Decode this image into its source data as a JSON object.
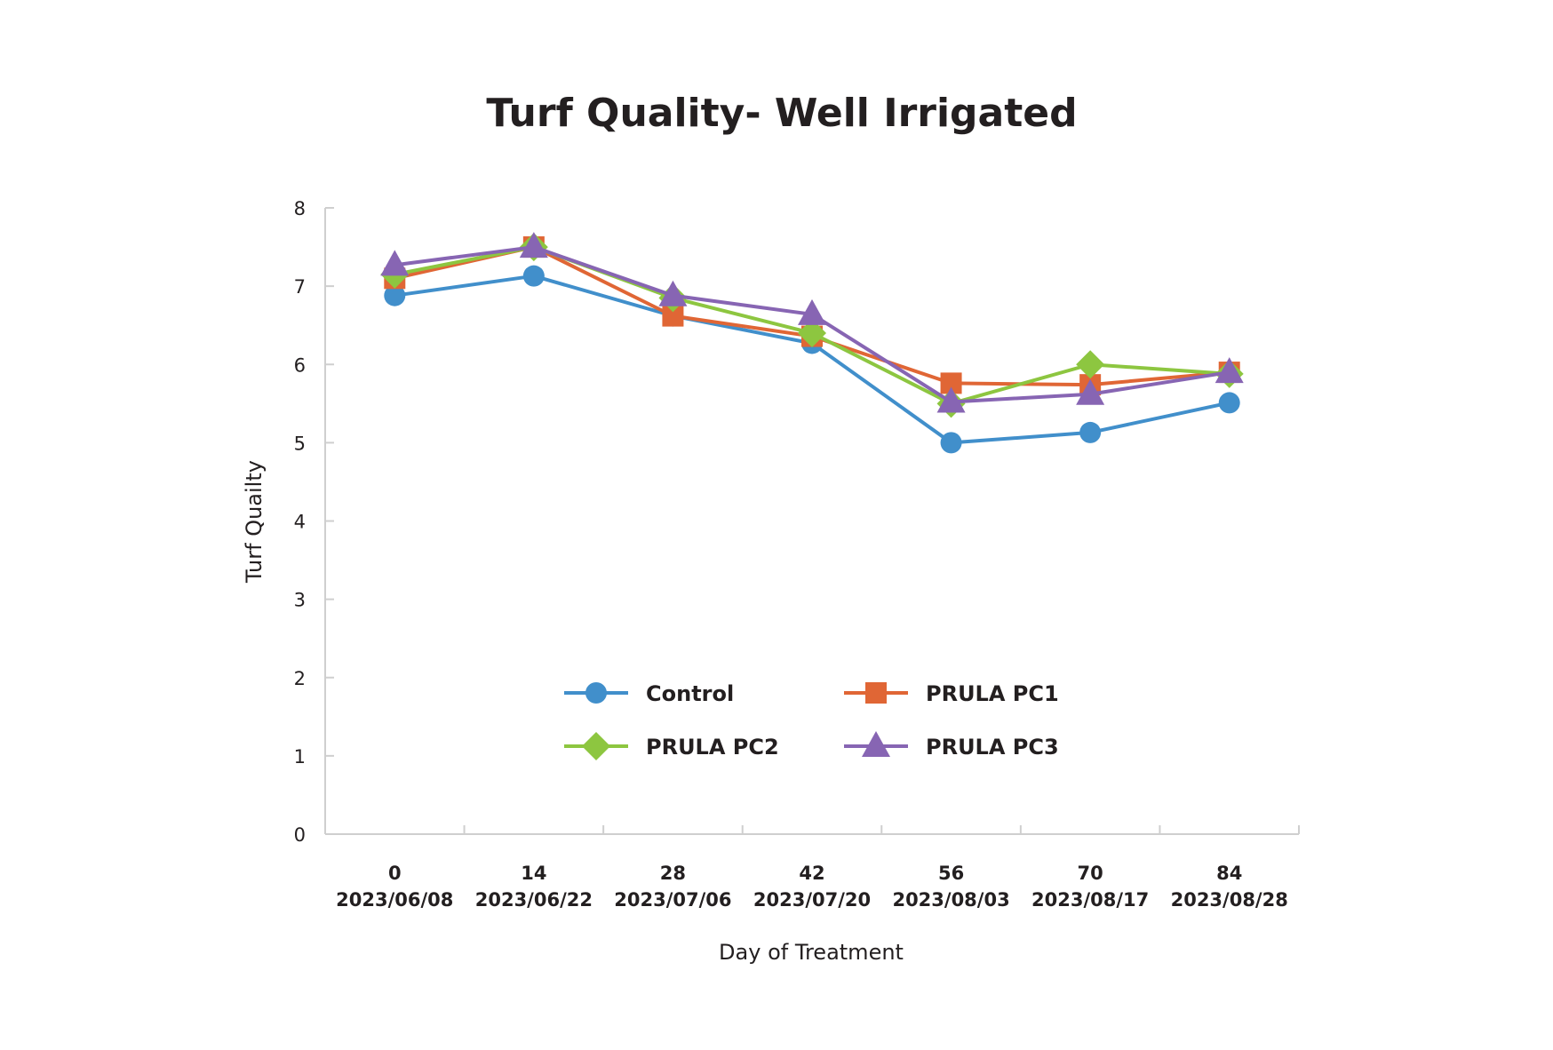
{
  "chart_data": {
    "type": "line",
    "title": "Turf Quality- Well Irrigated",
    "xlabel": "Day of Treatment",
    "ylabel": "Turf Quailty",
    "categories": [
      "0",
      "14",
      "28",
      "42",
      "56",
      "70",
      "84"
    ],
    "category_dates": [
      "2023/06/08",
      "2023/06/22",
      "2023/07/06",
      "2023/07/20",
      "2023/08/03",
      "2023/08/17",
      "2023/08/28"
    ],
    "ylim": [
      0,
      8
    ],
    "yticks": [
      0,
      1,
      2,
      3,
      4,
      5,
      6,
      7,
      8
    ],
    "grid": false,
    "legend_position": "bottom-center-inside",
    "series": [
      {
        "name": "Control",
        "marker": "circle",
        "color": "#418fcb",
        "values": [
          6.88,
          7.13,
          6.62,
          6.27,
          5.0,
          5.13,
          5.51
        ]
      },
      {
        "name": "PRULA PC1",
        "marker": "square",
        "color": "#e06635",
        "values": [
          7.1,
          7.5,
          6.62,
          6.36,
          5.76,
          5.74,
          5.9
        ]
      },
      {
        "name": "PRULA PC2",
        "marker": "diamond",
        "color": "#8dc640",
        "values": [
          7.15,
          7.5,
          6.85,
          6.4,
          5.5,
          6.0,
          5.88
        ]
      },
      {
        "name": "PRULA PC3",
        "marker": "triangle",
        "color": "#8765b3",
        "values": [
          7.27,
          7.5,
          6.88,
          6.64,
          5.52,
          5.62,
          5.9
        ]
      }
    ]
  }
}
